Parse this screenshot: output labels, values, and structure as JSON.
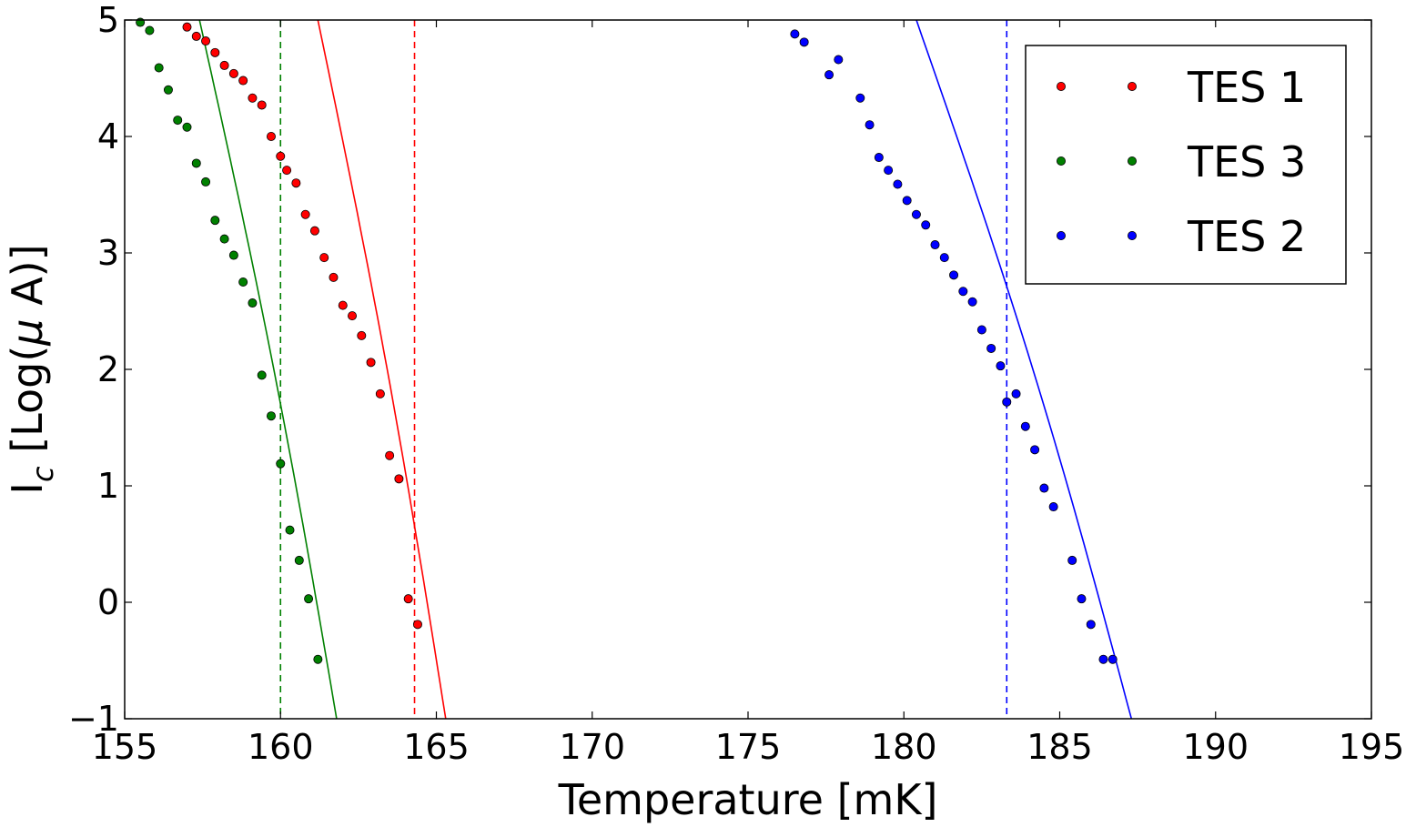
{
  "chart_data": {
    "type": "scatter",
    "xlabel": "Temperature [mK]",
    "ylabel": {
      "main": "I",
      "sub": "c",
      "bracket_open": " [Log(",
      "mu": "μ",
      "unit_rest": " A)]"
    },
    "xlim": [
      155,
      195
    ],
    "ylim": [
      -1,
      5
    ],
    "xticks": [
      155,
      160,
      165,
      170,
      175,
      180,
      185,
      190,
      195
    ],
    "yticks": [
      -1,
      0,
      1,
      2,
      3,
      4,
      5
    ],
    "ytick_labels": [
      "−1",
      "0",
      "1",
      "2",
      "3",
      "4",
      "5"
    ],
    "grid": false,
    "legend_position": "top-right",
    "series": [
      {
        "name": "TES 1",
        "color": "#ff0000",
        "vline": 164.3,
        "fit": {
          "x0": 161.2,
          "y0": 5.0,
          "x1": 165.3,
          "y1": -1.0
        },
        "points": [
          [
            157.0,
            4.94
          ],
          [
            157.3,
            4.86
          ],
          [
            157.6,
            4.82
          ],
          [
            157.9,
            4.72
          ],
          [
            158.2,
            4.61
          ],
          [
            158.5,
            4.54
          ],
          [
            158.8,
            4.48
          ],
          [
            159.1,
            4.33
          ],
          [
            159.4,
            4.27
          ],
          [
            159.7,
            4.0
          ],
          [
            160.0,
            3.83
          ],
          [
            160.2,
            3.71
          ],
          [
            160.5,
            3.6
          ],
          [
            160.8,
            3.33
          ],
          [
            161.1,
            3.19
          ],
          [
            161.4,
            2.96
          ],
          [
            161.7,
            2.79
          ],
          [
            162.0,
            2.55
          ],
          [
            162.3,
            2.46
          ],
          [
            162.6,
            2.29
          ],
          [
            162.9,
            2.06
          ],
          [
            163.2,
            1.79
          ],
          [
            163.5,
            1.26
          ],
          [
            163.8,
            1.06
          ],
          [
            164.1,
            0.03
          ],
          [
            164.4,
            -0.19
          ]
        ]
      },
      {
        "name": "TES 3",
        "color": "#008000",
        "vline": 160.0,
        "fit": {
          "x0": 157.4,
          "y0": 5.0,
          "x1": 161.8,
          "y1": -1.0
        },
        "points": [
          [
            155.5,
            4.98
          ],
          [
            155.8,
            4.91
          ],
          [
            156.1,
            4.59
          ],
          [
            156.4,
            4.4
          ],
          [
            156.7,
            4.14
          ],
          [
            157.0,
            4.08
          ],
          [
            157.3,
            3.77
          ],
          [
            157.6,
            3.61
          ],
          [
            157.9,
            3.28
          ],
          [
            158.2,
            3.12
          ],
          [
            158.5,
            2.98
          ],
          [
            158.8,
            2.75
          ],
          [
            159.1,
            2.57
          ],
          [
            159.4,
            1.95
          ],
          [
            159.7,
            1.6
          ],
          [
            160.0,
            1.19
          ],
          [
            160.3,
            0.62
          ],
          [
            160.6,
            0.36
          ],
          [
            160.9,
            0.03
          ],
          [
            161.2,
            -0.49
          ]
        ]
      },
      {
        "name": "TES 2",
        "color": "#0000ff",
        "vline": 183.3,
        "fit": {
          "x0": 180.4,
          "y0": 5.0,
          "x1": 187.3,
          "y1": -1.0
        },
        "points": [
          [
            176.5,
            4.88
          ],
          [
            176.8,
            4.81
          ],
          [
            177.6,
            4.53
          ],
          [
            177.9,
            4.66
          ],
          [
            178.6,
            4.33
          ],
          [
            178.9,
            4.1
          ],
          [
            179.2,
            3.82
          ],
          [
            179.5,
            3.71
          ],
          [
            179.8,
            3.59
          ],
          [
            180.1,
            3.45
          ],
          [
            180.4,
            3.33
          ],
          [
            180.7,
            3.24
          ],
          [
            181.0,
            3.07
          ],
          [
            181.3,
            2.96
          ],
          [
            181.6,
            2.81
          ],
          [
            181.9,
            2.67
          ],
          [
            182.2,
            2.58
          ],
          [
            182.5,
            2.34
          ],
          [
            182.8,
            2.18
          ],
          [
            183.1,
            2.03
          ],
          [
            183.3,
            1.72
          ],
          [
            183.6,
            1.79
          ],
          [
            183.9,
            1.51
          ],
          [
            184.2,
            1.31
          ],
          [
            184.5,
            0.98
          ],
          [
            184.8,
            0.82
          ],
          [
            185.4,
            0.36
          ],
          [
            185.7,
            0.03
          ],
          [
            186.0,
            -0.19
          ],
          [
            186.4,
            -0.49
          ],
          [
            186.7,
            -0.49
          ]
        ]
      }
    ],
    "legend_order": [
      "TES 1",
      "TES 3",
      "TES 2"
    ]
  }
}
